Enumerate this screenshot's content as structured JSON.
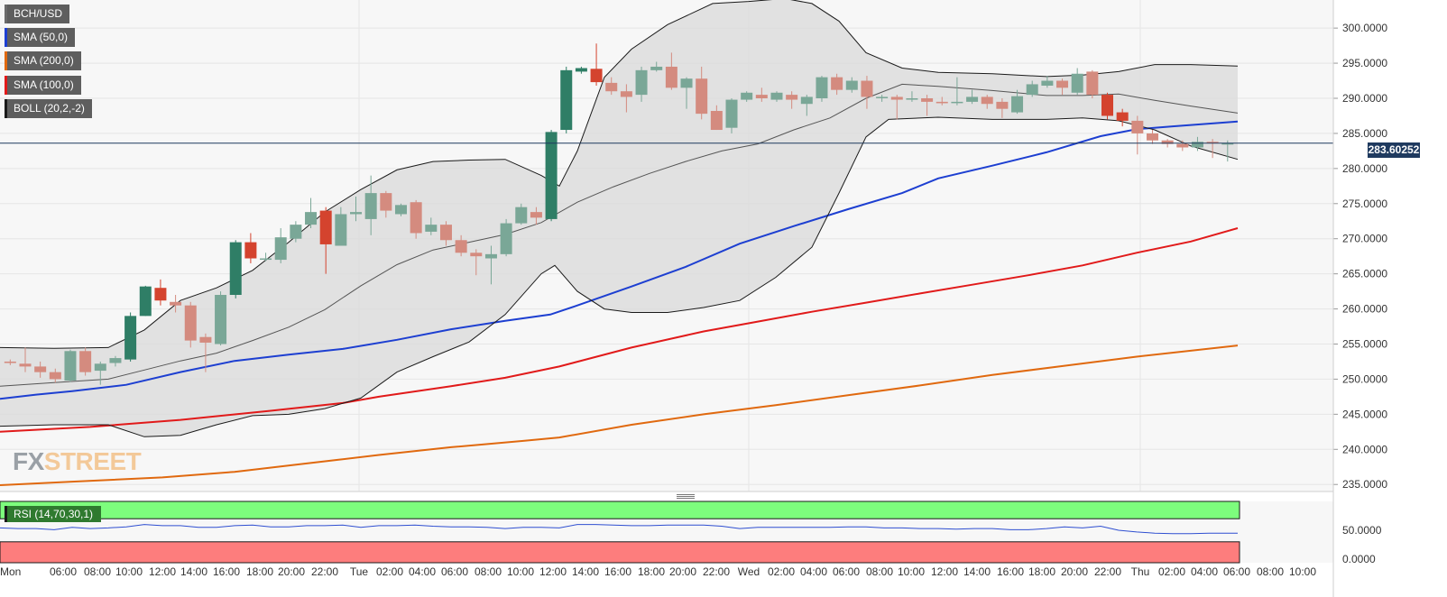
{
  "chart_data": {
    "type": "candlestick",
    "symbol": "BCH/USD",
    "last_price": "283.60252",
    "y_axis": {
      "ticks": [
        "300.0000",
        "295.0000",
        "290.0000",
        "285.0000",
        "280.0000",
        "275.0000",
        "270.0000",
        "265.0000",
        "260.0000",
        "255.0000",
        "250.0000",
        "245.0000",
        "240.0000",
        "235.0000"
      ],
      "range": [
        234.0,
        304.0
      ]
    },
    "x_axis": {
      "ticks": [
        "Mon",
        "06:00",
        "08:00",
        "10:00",
        "12:00",
        "14:00",
        "16:00",
        "18:00",
        "20:00",
        "22:00",
        "Tue",
        "02:00",
        "04:00",
        "06:00",
        "08:00",
        "10:00",
        "12:00",
        "14:00",
        "16:00",
        "18:00",
        "20:00",
        "22:00",
        "Wed",
        "02:00",
        "04:00",
        "06:00",
        "08:00",
        "10:00",
        "12:00",
        "14:00",
        "16:00",
        "18:00",
        "20:00",
        "22:00",
        "Thu",
        "02:00",
        "04:00",
        "06:00",
        "08:00",
        "10:00"
      ]
    },
    "candles": [
      [
        252.5,
        252.3,
        252.8,
        252.0
      ],
      [
        252.2,
        251.8,
        254.5,
        251.0
      ],
      [
        251.8,
        251.0,
        252.5,
        250.2
      ],
      [
        251.0,
        250.0,
        251.5,
        249.5
      ],
      [
        249.8,
        254.0,
        254.2,
        249.6
      ],
      [
        254.0,
        251.0,
        254.5,
        250.5
      ],
      [
        251.2,
        252.2,
        252.5,
        249.2
      ],
      [
        252.3,
        253.0,
        253.3,
        251.8
      ],
      [
        252.8,
        259.0,
        259.5,
        252.5
      ],
      [
        259.0,
        263.2,
        263.3,
        259.0
      ],
      [
        263.0,
        261.2,
        264.2,
        260.5
      ],
      [
        261.0,
        260.5,
        262.0,
        259.5
      ],
      [
        260.5,
        255.5,
        261.0,
        254.5
      ],
      [
        256.0,
        255.2,
        256.5,
        251.0
      ],
      [
        255.0,
        262.0,
        262.5,
        254.8
      ],
      [
        262.0,
        269.5,
        269.8,
        261.5
      ],
      [
        269.5,
        267.2,
        270.8,
        266.5
      ],
      [
        267.0,
        267.2,
        268.0,
        266.8
      ],
      [
        267.0,
        270.2,
        271.5,
        266.5
      ],
      [
        270.0,
        272.0,
        272.5,
        269.5
      ],
      [
        272.0,
        273.8,
        275.8,
        271.5
      ],
      [
        274.0,
        269.2,
        274.5,
        265.0
      ],
      [
        269.0,
        273.5,
        274.5,
        269.0
      ],
      [
        273.5,
        273.8,
        276.0,
        272.5
      ],
      [
        272.8,
        276.5,
        279.0,
        270.5
      ],
      [
        276.5,
        274.0,
        276.8,
        273.0
      ],
      [
        273.5,
        274.8,
        275.0,
        273.2
      ],
      [
        275.2,
        270.8,
        275.5,
        270.0
      ],
      [
        271.0,
        272.0,
        273.0,
        270.5
      ],
      [
        272.0,
        269.8,
        272.5,
        269.0
      ],
      [
        269.8,
        268.0,
        270.5,
        267.5
      ],
      [
        268.0,
        267.5,
        268.5,
        264.8
      ],
      [
        267.2,
        267.8,
        269.0,
        263.5
      ],
      [
        267.8,
        272.2,
        272.8,
        267.5
      ],
      [
        272.2,
        274.5,
        275.0,
        272.0
      ],
      [
        273.8,
        273.0,
        274.5,
        272.0
      ],
      [
        272.8,
        285.2,
        285.5,
        272.5
      ],
      [
        285.5,
        294.0,
        294.5,
        285.0
      ],
      [
        293.8,
        294.3,
        294.5,
        293.5
      ],
      [
        294.2,
        292.3,
        297.8,
        291.8
      ],
      [
        292.2,
        291.0,
        293.0,
        290.5
      ],
      [
        291.0,
        290.2,
        292.0,
        288.0
      ],
      [
        290.5,
        294.0,
        294.5,
        289.5
      ],
      [
        294.0,
        294.5,
        295.2,
        293.8
      ],
      [
        294.5,
        291.5,
        296.5,
        291.2
      ],
      [
        291.5,
        292.8,
        293.0,
        288.5
      ],
      [
        292.8,
        287.8,
        294.5,
        287.0
      ],
      [
        288.2,
        285.5,
        289.0,
        285.5
      ],
      [
        285.8,
        289.8,
        290.0,
        285.0
      ],
      [
        289.8,
        290.8,
        291.0,
        289.5
      ],
      [
        290.5,
        290.0,
        291.5,
        289.5
      ],
      [
        289.8,
        290.8,
        291.0,
        289.5
      ],
      [
        290.5,
        289.8,
        291.0,
        288.5
      ],
      [
        289.2,
        290.2,
        290.5,
        287.5
      ],
      [
        290.0,
        293.0,
        293.2,
        289.5
      ],
      [
        293.0,
        291.2,
        293.5,
        290.5
      ],
      [
        291.2,
        292.5,
        293.0,
        290.8
      ],
      [
        292.5,
        290.2,
        293.2,
        288.5
      ],
      [
        290.2,
        290.2,
        290.5,
        289.5
      ],
      [
        290.2,
        289.8,
        290.5,
        287.0
      ],
      [
        289.8,
        290.0,
        291.0,
        289.5
      ],
      [
        290.0,
        289.5,
        290.5,
        287.5
      ],
      [
        289.5,
        289.3,
        290.2,
        289.0
      ],
      [
        289.5,
        289.5,
        293.0,
        289.0
      ],
      [
        289.5,
        290.2,
        291.2,
        289.2
      ],
      [
        290.2,
        289.2,
        290.5,
        288.5
      ],
      [
        289.5,
        288.5,
        290.0,
        287.2
      ],
      [
        288.0,
        290.3,
        291.2,
        287.8
      ],
      [
        290.5,
        292.0,
        292.5,
        290.2
      ],
      [
        291.8,
        292.5,
        293.2,
        291.5
      ],
      [
        292.5,
        291.5,
        292.8,
        290.5
      ],
      [
        290.8,
        293.5,
        294.3,
        290.5
      ],
      [
        293.8,
        290.5,
        294.0,
        290.0
      ],
      [
        290.5,
        287.5,
        290.8,
        287.0
      ],
      [
        288.0,
        286.8,
        288.5,
        286.0
      ],
      [
        286.8,
        285.0,
        287.5,
        282.0
      ],
      [
        285.0,
        284.0,
        285.5,
        283.5
      ],
      [
        284.0,
        283.5,
        284.2,
        283.0
      ],
      [
        283.5,
        283.0,
        284.0,
        282.5
      ],
      [
        283.0,
        283.8,
        284.5,
        282.5
      ],
      [
        283.8,
        283.6,
        284.2,
        281.5
      ],
      [
        283.6,
        283.6,
        284.0,
        281.0
      ]
    ],
    "sma_50": [
      [
        0,
        247.2
      ],
      [
        40,
        247.8
      ],
      [
        80,
        248.3
      ],
      [
        140,
        249.2
      ],
      [
        200,
        251.0
      ],
      [
        260,
        252.6
      ],
      [
        320,
        253.5
      ],
      [
        380,
        254.3
      ],
      [
        440,
        255.6
      ],
      [
        500,
        257.1
      ],
      [
        560,
        258.3
      ],
      [
        610,
        259.2
      ],
      [
        640,
        260.5
      ],
      [
        700,
        263.2
      ],
      [
        760,
        266.0
      ],
      [
        820,
        269.3
      ],
      [
        880,
        271.8
      ],
      [
        940,
        274.2
      ],
      [
        1000,
        276.5
      ],
      [
        1040,
        278.6
      ],
      [
        1100,
        280.4
      ],
      [
        1160,
        282.3
      ],
      [
        1220,
        284.6
      ],
      [
        1260,
        285.6
      ],
      [
        1300,
        286.0
      ],
      [
        1372,
        286.7
      ]
    ],
    "sma_100": [
      [
        0,
        242.5
      ],
      [
        100,
        243.2
      ],
      [
        200,
        244.2
      ],
      [
        300,
        245.5
      ],
      [
        380,
        246.6
      ],
      [
        420,
        247.5
      ],
      [
        500,
        249.0
      ],
      [
        560,
        250.2
      ],
      [
        620,
        251.8
      ],
      [
        700,
        254.5
      ],
      [
        780,
        256.8
      ],
      [
        840,
        258.2
      ],
      [
        900,
        259.6
      ],
      [
        960,
        260.9
      ],
      [
        1020,
        262.2
      ],
      [
        1080,
        263.5
      ],
      [
        1140,
        264.8
      ],
      [
        1200,
        266.2
      ],
      [
        1260,
        268.0
      ],
      [
        1320,
        269.6
      ],
      [
        1372,
        271.5
      ]
    ],
    "sma_200": [
      [
        0,
        234.9
      ],
      [
        80,
        235.4
      ],
      [
        180,
        236.0
      ],
      [
        260,
        236.8
      ],
      [
        340,
        238.0
      ],
      [
        420,
        239.2
      ],
      [
        500,
        240.3
      ],
      [
        580,
        241.2
      ],
      [
        620,
        241.7
      ],
      [
        700,
        243.5
      ],
      [
        780,
        245.0
      ],
      [
        860,
        246.3
      ],
      [
        940,
        247.7
      ],
      [
        1020,
        249.1
      ],
      [
        1100,
        250.6
      ],
      [
        1180,
        251.9
      ],
      [
        1260,
        253.2
      ],
      [
        1372,
        254.8
      ]
    ],
    "boll_upper": [
      [
        0,
        254.5
      ],
      [
        60,
        254.4
      ],
      [
        120,
        254.5
      ],
      [
        160,
        257.0
      ],
      [
        200,
        261.2
      ],
      [
        240,
        263.0
      ],
      [
        280,
        265.5
      ],
      [
        320,
        269.5
      ],
      [
        360,
        273.8
      ],
      [
        400,
        277.0
      ],
      [
        440,
        279.8
      ],
      [
        480,
        281.0
      ],
      [
        520,
        281.2
      ],
      [
        560,
        281.3
      ],
      [
        600,
        279.0
      ],
      [
        620,
        277.5
      ],
      [
        640,
        282.5
      ],
      [
        670,
        293.0
      ],
      [
        700,
        297.0
      ],
      [
        740,
        300.5
      ],
      [
        790,
        303.5
      ],
      [
        830,
        303.8
      ],
      [
        870,
        304.2
      ],
      [
        900,
        303.5
      ],
      [
        930,
        301.0
      ],
      [
        960,
        296.5
      ],
      [
        1000,
        294.3
      ],
      [
        1040,
        293.7
      ],
      [
        1100,
        293.5
      ],
      [
        1160,
        293.1
      ],
      [
        1200,
        293.3
      ],
      [
        1240,
        293.8
      ],
      [
        1280,
        294.8
      ],
      [
        1320,
        294.8
      ],
      [
        1372,
        294.6
      ]
    ],
    "boll_middle": [
      [
        0,
        249.0
      ],
      [
        60,
        249.5
      ],
      [
        120,
        250.0
      ],
      [
        160,
        251.3
      ],
      [
        200,
        252.6
      ],
      [
        240,
        253.7
      ],
      [
        280,
        255.5
      ],
      [
        320,
        257.4
      ],
      [
        360,
        259.9
      ],
      [
        400,
        263.3
      ],
      [
        440,
        266.3
      ],
      [
        480,
        268.4
      ],
      [
        520,
        269.5
      ],
      [
        560,
        270.6
      ],
      [
        600,
        272.3
      ],
      [
        640,
        275.2
      ],
      [
        680,
        277.4
      ],
      [
        720,
        279.3
      ],
      [
        760,
        281.0
      ],
      [
        800,
        282.5
      ],
      [
        840,
        283.5
      ],
      [
        880,
        285.5
      ],
      [
        920,
        287.2
      ],
      [
        960,
        290.0
      ],
      [
        1000,
        292.0
      ],
      [
        1040,
        291.7
      ],
      [
        1100,
        291.1
      ],
      [
        1160,
        290.4
      ],
      [
        1200,
        290.4
      ],
      [
        1240,
        290.6
      ],
      [
        1280,
        289.7
      ],
      [
        1320,
        288.9
      ],
      [
        1372,
        287.9
      ]
    ],
    "boll_lower": [
      [
        0,
        243.3
      ],
      [
        60,
        243.5
      ],
      [
        120,
        243.5
      ],
      [
        160,
        241.8
      ],
      [
        200,
        242.0
      ],
      [
        240,
        243.5
      ],
      [
        280,
        244.8
      ],
      [
        320,
        245.0
      ],
      [
        360,
        245.8
      ],
      [
        400,
        247.3
      ],
      [
        440,
        251.0
      ],
      [
        480,
        253.2
      ],
      [
        520,
        255.3
      ],
      [
        560,
        259.2
      ],
      [
        600,
        265.0
      ],
      [
        615,
        266.2
      ],
      [
        640,
        262.5
      ],
      [
        670,
        260.0
      ],
      [
        700,
        259.5
      ],
      [
        740,
        259.5
      ],
      [
        780,
        260.2
      ],
      [
        820,
        261.2
      ],
      [
        860,
        264.5
      ],
      [
        900,
        268.8
      ],
      [
        930,
        276.5
      ],
      [
        960,
        284.5
      ],
      [
        985,
        287.0
      ],
      [
        1040,
        287.3
      ],
      [
        1100,
        287.0
      ],
      [
        1160,
        287.0
      ],
      [
        1200,
        287.2
      ],
      [
        1240,
        286.8
      ],
      [
        1280,
        285.5
      ],
      [
        1320,
        283.2
      ],
      [
        1372,
        281.3
      ]
    ],
    "rsi": {
      "label": "RSI (14,70,30,1)",
      "ticks": [
        "50.0000",
        "0.0000"
      ],
      "overbought": 70,
      "oversold": 30,
      "values": [
        [
          0,
          54
        ],
        [
          20,
          53
        ],
        [
          40,
          53
        ],
        [
          60,
          51
        ],
        [
          80,
          55
        ],
        [
          100,
          53
        ],
        [
          120,
          54
        ],
        [
          140,
          56
        ],
        [
          160,
          60
        ],
        [
          180,
          58
        ],
        [
          200,
          58
        ],
        [
          220,
          55
        ],
        [
          240,
          55
        ],
        [
          260,
          58
        ],
        [
          280,
          59
        ],
        [
          300,
          56
        ],
        [
          320,
          56
        ],
        [
          340,
          58
        ],
        [
          360,
          58
        ],
        [
          380,
          59
        ],
        [
          400,
          55
        ],
        [
          420,
          58
        ],
        [
          440,
          58
        ],
        [
          460,
          59
        ],
        [
          480,
          57
        ],
        [
          500,
          56
        ],
        [
          520,
          56
        ],
        [
          540,
          55
        ],
        [
          560,
          53
        ],
        [
          580,
          55
        ],
        [
          600,
          55
        ],
        [
          620,
          54
        ],
        [
          640,
          60
        ],
        [
          660,
          60
        ],
        [
          680,
          59
        ],
        [
          700,
          58
        ],
        [
          720,
          58
        ],
        [
          740,
          59
        ],
        [
          760,
          59
        ],
        [
          780,
          59
        ],
        [
          800,
          57
        ],
        [
          820,
          53
        ],
        [
          840,
          55
        ],
        [
          860,
          55
        ],
        [
          880,
          55
        ],
        [
          900,
          55
        ],
        [
          920,
          55
        ],
        [
          940,
          56
        ],
        [
          960,
          56
        ],
        [
          980,
          54
        ],
        [
          1000,
          54
        ],
        [
          1020,
          53
        ],
        [
          1040,
          53
        ],
        [
          1060,
          52
        ],
        [
          1080,
          53
        ],
        [
          1100,
          53
        ],
        [
          1120,
          51
        ],
        [
          1140,
          51
        ],
        [
          1160,
          53
        ],
        [
          1180,
          56
        ],
        [
          1200,
          54
        ],
        [
          1220,
          57
        ],
        [
          1240,
          50
        ],
        [
          1260,
          47
        ],
        [
          1280,
          45
        ],
        [
          1300,
          44
        ],
        [
          1320,
          44
        ],
        [
          1340,
          45
        ],
        [
          1360,
          45
        ],
        [
          1372,
          45
        ]
      ]
    }
  },
  "legend": [
    {
      "label": "BCH/USD",
      "color": "#6b6b6b"
    },
    {
      "label": "SMA (50,0)",
      "color": "#1d3fd1"
    },
    {
      "label": "SMA (200,0)",
      "color": "#e0690f"
    },
    {
      "label": "SMA (100,0)",
      "color": "#e11a1a"
    },
    {
      "label": "BOLL (20,2,-2)",
      "color": "#1a1a1a"
    }
  ],
  "logo": {
    "fx": "FX",
    "street": "STREET"
  },
  "colors": {
    "bull": "#2f7e66",
    "bear": "#d4432e",
    "bull_faded": "#7aa797",
    "bear_faded": "#d48b7f",
    "sma50": "#1d3fd1",
    "sma100": "#e11a1a",
    "sma200": "#e0690f",
    "boll": "#1a1a1a",
    "boll_fill": "#d9d9d9",
    "price_line": "#1f3a5f",
    "rsi_line": "#2f4fd1",
    "rsi_overbought": "#7dfd7d",
    "rsi_oversold": "#fd7d7d"
  }
}
